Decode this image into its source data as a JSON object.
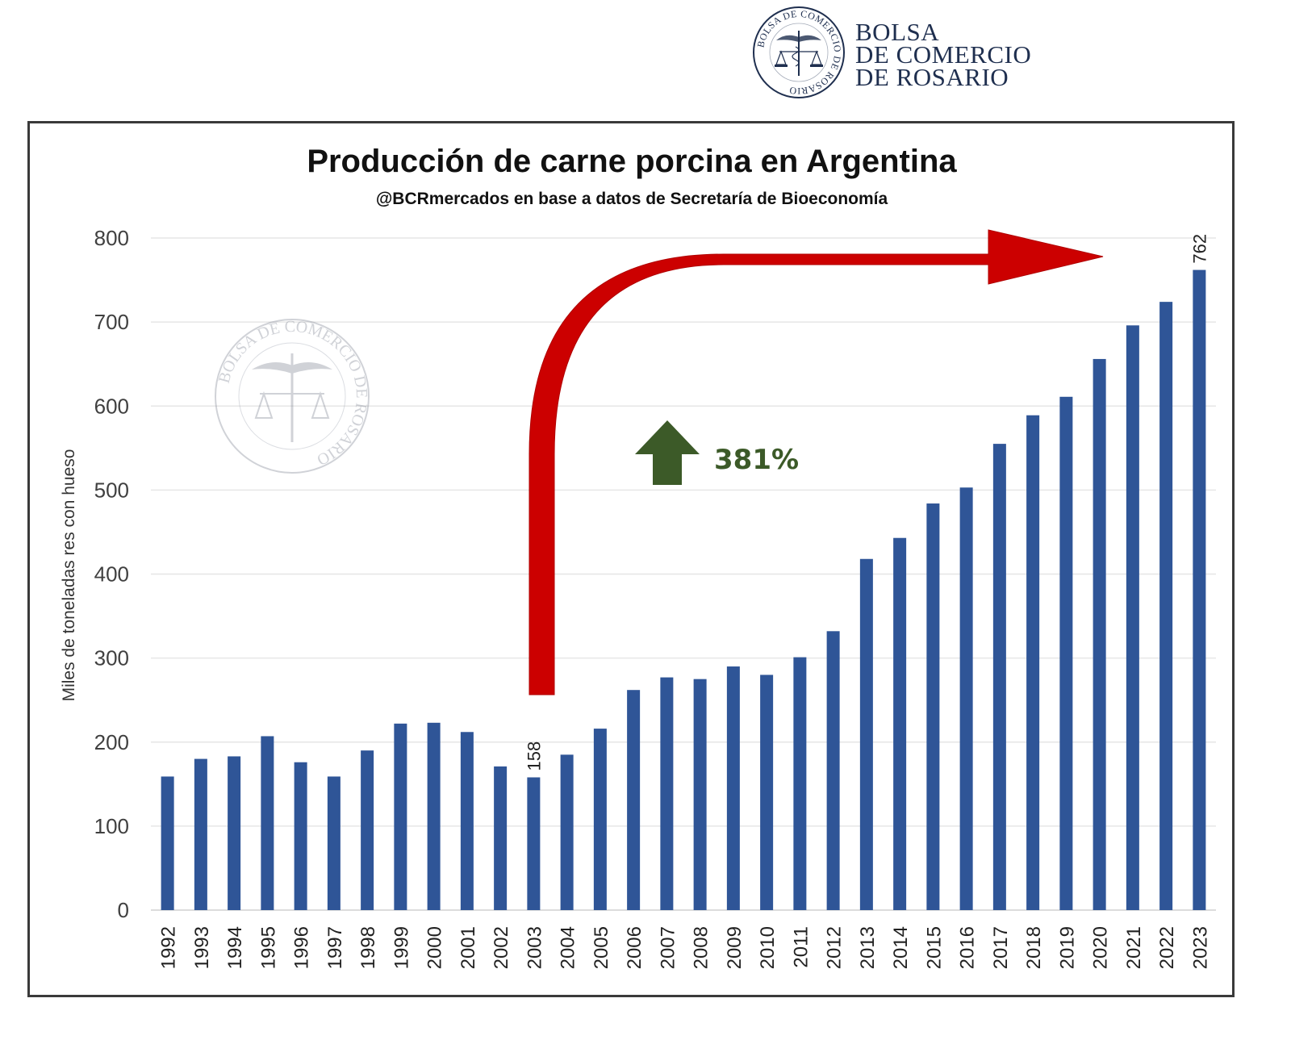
{
  "logo": {
    "seal_text": "BOLSA DE COMERCIO DE ROSARIO",
    "line1": "BOLSA",
    "line2": "DE COMERCIO",
    "line3": "DE ROSARIO"
  },
  "watermark": {
    "seal_text": "BOLSA DE COMERCIO DE ROSARIO"
  },
  "annotation": {
    "growth_label": "381%",
    "arrow_color": "#cc0000",
    "growth_color": "#3c5a28"
  },
  "colors": {
    "bar": "#2f5597",
    "grid": "#e6e6e6",
    "text": "#404040"
  },
  "chart_data": {
    "type": "bar",
    "title": "Producción de carne porcina en Argentina",
    "subtitle": "@BCRmercados en base a datos de Secretaría de Bioeconomía",
    "xlabel": "",
    "ylabel": "Miles de toneladas res con hueso",
    "ylim": [
      0,
      800
    ],
    "yticks": [
      "0",
      "100",
      "200",
      "300",
      "400",
      "500",
      "600",
      "700",
      "800"
    ],
    "grid": true,
    "categories": [
      "1992",
      "1993",
      "1994",
      "1995",
      "1996",
      "1997",
      "1998",
      "1999",
      "2000",
      "2001",
      "2002",
      "2003",
      "2004",
      "2005",
      "2006",
      "2007",
      "2008",
      "2009",
      "2010",
      "2011",
      "2012",
      "2013",
      "2014",
      "2015",
      "2016",
      "2017",
      "2018",
      "2019",
      "2020",
      "2021",
      "2022",
      "2023"
    ],
    "values": [
      159,
      180,
      183,
      207,
      176,
      159,
      190,
      222,
      223,
      212,
      171,
      158,
      185,
      216,
      262,
      277,
      275,
      290,
      280,
      301,
      332,
      418,
      443,
      484,
      503,
      555,
      589,
      611,
      656,
      696,
      724,
      762
    ],
    "data_labels": [
      {
        "category": "2003",
        "label": "158"
      },
      {
        "category": "2023",
        "label": "762"
      }
    ]
  }
}
